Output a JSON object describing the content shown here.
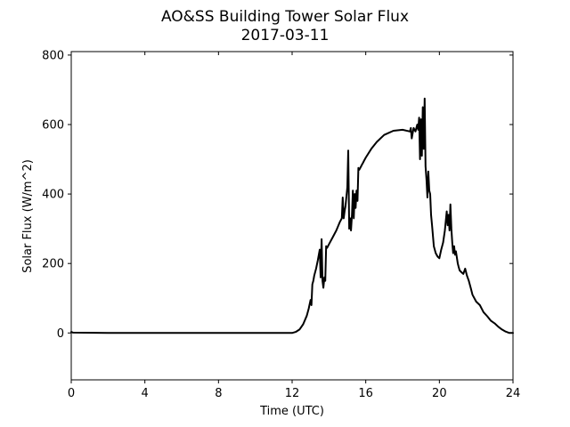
{
  "chart_data": {
    "type": "line",
    "title": "AO&SS Building Tower Solar Flux",
    "subtitle": "2017-03-11",
    "xlabel": "Time (UTC)",
    "ylabel": "Solar Flux (W/m^2)",
    "xlim": [
      0,
      24
    ],
    "ylim": [
      -135,
      810
    ],
    "xticks": [
      0,
      4,
      8,
      12,
      16,
      20,
      24
    ],
    "yticks": [
      0,
      200,
      400,
      600,
      800
    ],
    "grid": false,
    "series": [
      {
        "color": "#000000",
        "x": [
          0,
          0.1,
          2,
          4,
          6,
          8,
          10,
          11.5,
          12.0,
          12.2,
          12.4,
          12.6,
          12.8,
          12.9,
          13.0,
          13.05,
          13.1,
          13.15,
          13.2,
          13.3,
          13.4,
          13.5,
          13.55,
          13.6,
          13.65,
          13.7,
          13.75,
          13.8,
          13.85,
          13.9,
          14.0,
          14.2,
          14.4,
          14.6,
          14.7,
          14.75,
          14.8,
          14.85,
          14.9,
          15.0,
          15.05,
          15.1,
          15.15,
          15.2,
          15.25,
          15.3,
          15.35,
          15.4,
          15.45,
          15.5,
          15.55,
          15.6,
          15.65,
          15.7,
          15.75,
          15.8,
          15.85,
          15.9,
          16.0,
          16.3,
          16.6,
          17.0,
          17.5,
          18.0,
          18.4,
          18.45,
          18.5,
          18.6,
          18.7,
          18.8,
          18.85,
          18.9,
          18.95,
          19.0,
          19.05,
          19.1,
          19.15,
          19.2,
          19.25,
          19.3,
          19.35,
          19.4,
          19.45,
          19.5,
          19.55,
          19.6,
          19.7,
          19.8,
          19.9,
          20.0,
          20.1,
          20.2,
          20.3,
          20.4,
          20.45,
          20.5,
          20.55,
          20.6,
          20.65,
          20.7,
          20.75,
          20.8,
          20.85,
          20.9,
          21.0,
          21.05,
          21.1,
          21.2,
          21.3,
          21.4,
          21.5,
          21.6,
          21.7,
          21.8,
          22.0,
          22.2,
          22.4,
          22.6,
          22.8,
          23.0,
          23.2,
          23.4,
          23.6,
          23.8,
          24.0
        ],
        "y": [
          3,
          1,
          0,
          0,
          0,
          0,
          0,
          0,
          0,
          3,
          10,
          25,
          50,
          70,
          95,
          80,
          140,
          150,
          165,
          185,
          210,
          240,
          160,
          270,
          150,
          130,
          160,
          150,
          250,
          245,
          255,
          275,
          295,
          320,
          330,
          390,
          330,
          350,
          365,
          420,
          525,
          300,
          330,
          295,
          340,
          410,
          330,
          400,
          360,
          410,
          380,
          475,
          470,
          475,
          480,
          485,
          490,
          495,
          505,
          530,
          550,
          570,
          582,
          585,
          580,
          590,
          560,
          590,
          580,
          600,
          585,
          620,
          500,
          615,
          510,
          650,
          530,
          675,
          480,
          440,
          390,
          465,
          410,
          400,
          340,
          310,
          250,
          230,
          220,
          215,
          240,
          260,
          295,
          350,
          310,
          340,
          295,
          370,
          300,
          260,
          230,
          250,
          225,
          235,
          200,
          190,
          180,
          175,
          170,
          185,
          165,
          150,
          130,
          110,
          90,
          80,
          60,
          48,
          35,
          28,
          18,
          10,
          4,
          0,
          0
        ]
      }
    ]
  }
}
